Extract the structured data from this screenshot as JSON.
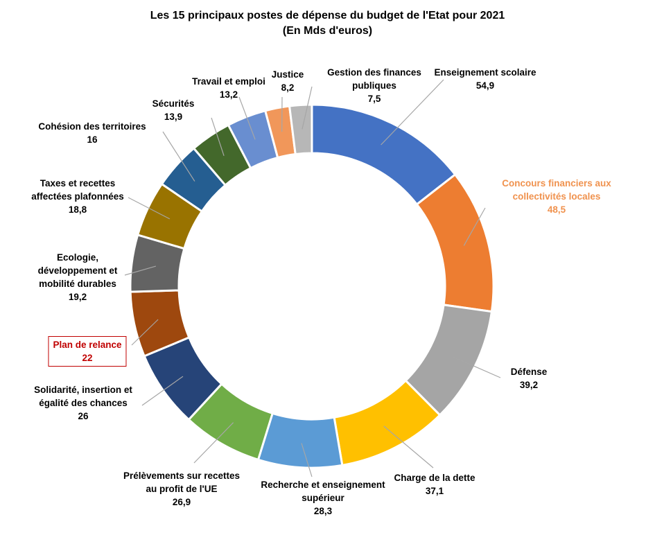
{
  "chart_data": {
    "type": "donut",
    "title": "Les 15 principaux postes de dépense du budget de l'Etat pour 2021",
    "subtitle": "(En Mds d'euros)",
    "categories": [
      "Enseignement scolaire",
      "Concours financiers aux collectivités locales",
      "Défense",
      "Charge de la dette",
      "Recherche et enseignement supérieur",
      "Prélèvements sur recettes au profit de l'UE",
      "Solidarité, insertion et égalité des chances",
      "Plan de relance",
      "Ecologie, développement et mobilité durables",
      "Taxes et recettes affectées plafonnées",
      "Cohésion des territoires",
      "Sécurités",
      "Travail et emploi",
      "Justice",
      "Gestion des finances publiques"
    ],
    "values": [
      54.9,
      48.5,
      39.2,
      37.1,
      28.3,
      26.9,
      26,
      22,
      19.2,
      18.8,
      16,
      13.9,
      13.2,
      8.2,
      7.5
    ],
    "value_labels": [
      "54,9",
      "48,5",
      "39,2",
      "37,1",
      "28,3",
      "26,9",
      "26",
      "22",
      "19,2",
      "18,8",
      "16",
      "13,9",
      "13,2",
      "8,2",
      "7,5"
    ],
    "colors": [
      "#4472c4",
      "#ed7d31",
      "#a5a5a5",
      "#ffc000",
      "#5b9bd5",
      "#70ad47",
      "#264478",
      "#9e480e",
      "#636363",
      "#997300",
      "#255e91",
      "#43682b",
      "#698ed0",
      "#f1975a",
      "#b7b7b7"
    ]
  }
}
